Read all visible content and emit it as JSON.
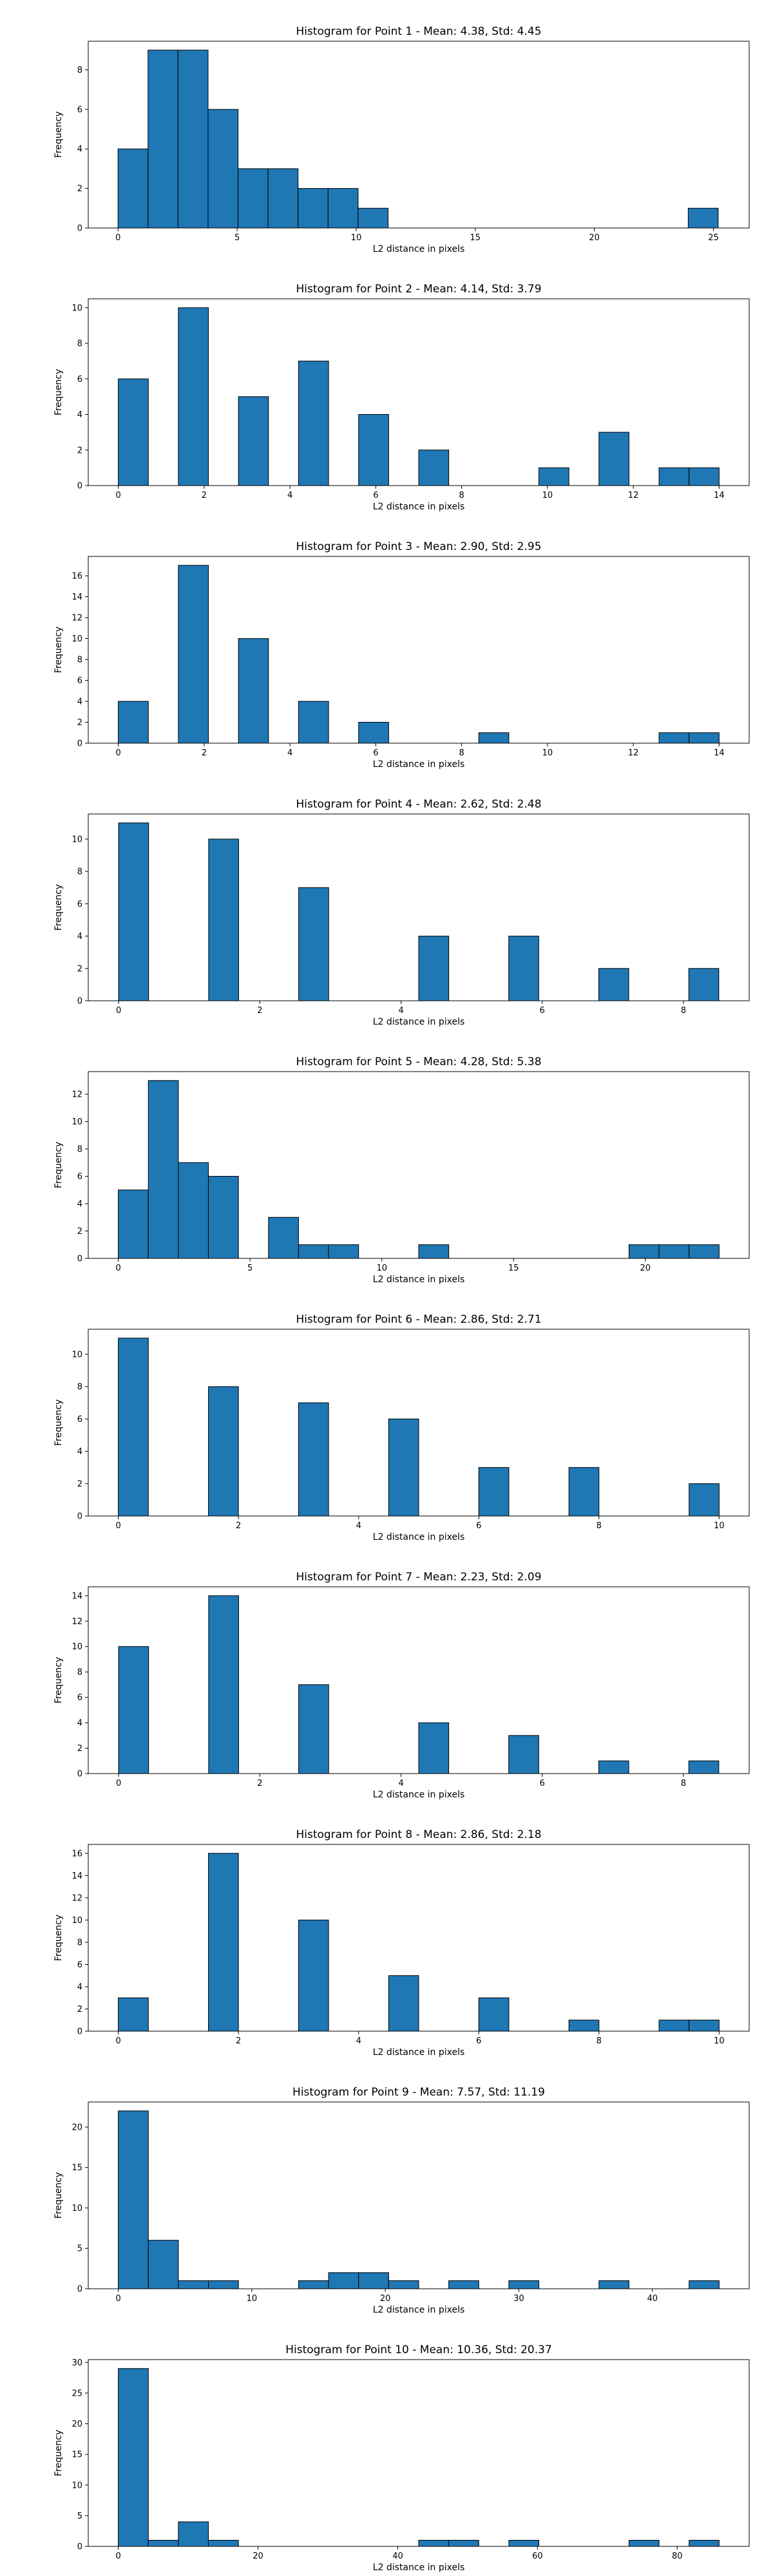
{
  "colors": {
    "bar_fill": "#1f77b4",
    "bar_edge": "#000000",
    "axis": "#000000",
    "background": "#ffffff"
  },
  "chart_data": [
    {
      "type": "bar",
      "title": "Histogram for Point 1 - Mean: 4.38, Std: 4.45",
      "xlabel": "L2 distance in pixels",
      "ylabel": "Frequency",
      "xlim": [
        -1.25,
        26.5
      ],
      "ylim": [
        0,
        9.45
      ],
      "xticks": [
        0,
        5,
        10,
        15,
        20,
        25
      ],
      "yticks": [
        0,
        2,
        4,
        6,
        8
      ],
      "bin_edges": [
        0.0,
        1.26,
        2.52,
        3.78,
        5.04,
        6.3,
        7.56,
        8.82,
        10.08,
        11.34,
        12.6,
        13.86,
        15.12,
        16.38,
        17.64,
        18.9,
        20.16,
        21.42,
        22.68,
        23.94,
        25.2
      ],
      "counts": [
        4,
        9,
        9,
        6,
        3,
        3,
        2,
        2,
        1,
        0,
        0,
        0,
        0,
        0,
        0,
        0,
        0,
        0,
        0,
        1
      ]
    },
    {
      "type": "bar",
      "title": "Histogram for Point 2 - Mean: 4.14, Std: 3.79",
      "xlabel": "L2 distance in pixels",
      "ylabel": "Frequency",
      "xlim": [
        -0.7,
        14.7
      ],
      "ylim": [
        0,
        10.5
      ],
      "xticks": [
        0,
        2,
        4,
        6,
        8,
        10,
        12,
        14
      ],
      "yticks": [
        0,
        2,
        4,
        6,
        8,
        10
      ],
      "bin_edges": [
        0.0,
        0.7,
        1.4,
        2.1,
        2.8,
        3.5,
        4.2,
        4.9,
        5.6,
        6.3,
        7.0,
        7.7,
        8.4,
        9.1,
        9.8,
        10.5,
        11.2,
        11.9,
        12.6,
        13.3,
        14.0
      ],
      "counts": [
        6,
        0,
        10,
        0,
        5,
        0,
        7,
        0,
        4,
        0,
        2,
        0,
        0,
        0,
        1,
        0,
        3,
        0,
        1,
        1
      ]
    },
    {
      "type": "bar",
      "title": "Histogram for Point 3 - Mean: 2.90, Std: 2.95",
      "xlabel": "L2 distance in pixels",
      "ylabel": "Frequency",
      "xlim": [
        -0.7,
        14.7
      ],
      "ylim": [
        0,
        17.85
      ],
      "xticks": [
        0,
        2,
        4,
        6,
        8,
        10,
        12,
        14
      ],
      "yticks": [
        0,
        2,
        4,
        6,
        8,
        10,
        12,
        14,
        16
      ],
      "bin_edges": [
        0.0,
        0.7,
        1.4,
        2.1,
        2.8,
        3.5,
        4.2,
        4.9,
        5.6,
        6.3,
        7.0,
        7.7,
        8.4,
        9.1,
        9.8,
        10.5,
        11.2,
        11.9,
        12.6,
        13.3,
        14.0
      ],
      "counts": [
        4,
        0,
        17,
        0,
        10,
        0,
        4,
        0,
        2,
        0,
        0,
        0,
        1,
        0,
        0,
        0,
        0,
        0,
        1,
        1
      ]
    },
    {
      "type": "bar",
      "title": "Histogram for Point 4 - Mean: 2.62, Std: 2.48",
      "xlabel": "L2 distance in pixels",
      "ylabel": "Frequency",
      "xlim": [
        -0.43,
        8.93
      ],
      "ylim": [
        0,
        11.55
      ],
      "xticks": [
        0,
        2,
        4,
        6,
        8
      ],
      "yticks": [
        0,
        2,
        4,
        6,
        8,
        10
      ],
      "bin_edges": [
        0.0,
        0.425,
        0.85,
        1.275,
        1.7,
        2.125,
        2.55,
        2.975,
        3.4,
        3.825,
        4.25,
        4.675,
        5.1,
        5.525,
        5.95,
        6.375,
        6.8,
        7.225,
        7.65,
        8.075,
        8.5
      ],
      "counts": [
        11,
        0,
        0,
        10,
        0,
        0,
        7,
        0,
        0,
        0,
        4,
        0,
        0,
        4,
        0,
        0,
        2,
        0,
        0,
        2
      ]
    },
    {
      "type": "bar",
      "title": "Histogram for Point 5 - Mean: 4.28, Std: 5.38",
      "xlabel": "L2 distance in pixels",
      "ylabel": "Frequency",
      "xlim": [
        -1.14,
        23.94
      ],
      "ylim": [
        0,
        13.65
      ],
      "xticks": [
        0,
        5,
        10,
        15,
        20
      ],
      "yticks": [
        0,
        2,
        4,
        6,
        8,
        10,
        12
      ],
      "bin_edges": [
        0.0,
        1.14,
        2.28,
        3.42,
        4.56,
        5.7,
        6.84,
        7.98,
        9.12,
        10.26,
        11.4,
        12.54,
        13.68,
        14.82,
        15.96,
        17.1,
        18.24,
        19.38,
        20.52,
        21.66,
        22.8
      ],
      "counts": [
        5,
        13,
        7,
        6,
        0,
        3,
        1,
        1,
        0,
        0,
        1,
        0,
        0,
        0,
        0,
        0,
        0,
        1,
        1,
        1
      ]
    },
    {
      "type": "bar",
      "title": "Histogram for Point 6 - Mean: 2.86, Std: 2.71",
      "xlabel": "L2 distance in pixels",
      "ylabel": "Frequency",
      "xlim": [
        -0.5,
        10.5
      ],
      "ylim": [
        0,
        11.55
      ],
      "xticks": [
        0,
        2,
        4,
        6,
        8,
        10
      ],
      "yticks": [
        0,
        2,
        4,
        6,
        8,
        10
      ],
      "bin_edges": [
        0.0,
        0.5,
        1.0,
        1.5,
        2.0,
        2.5,
        3.0,
        3.5,
        4.0,
        4.5,
        5.0,
        5.5,
        6.0,
        6.5,
        7.0,
        7.5,
        8.0,
        8.5,
        9.0,
        9.5,
        10.0
      ],
      "counts": [
        11,
        0,
        0,
        8,
        0,
        0,
        7,
        0,
        0,
        6,
        0,
        0,
        3,
        0,
        0,
        3,
        0,
        0,
        0,
        2
      ]
    },
    {
      "type": "bar",
      "title": "Histogram for Point 7 - Mean: 2.23, Std: 2.09",
      "xlabel": "L2 distance in pixels",
      "ylabel": "Frequency",
      "xlim": [
        -0.43,
        8.93
      ],
      "ylim": [
        0,
        14.7
      ],
      "xticks": [
        0,
        2,
        4,
        6,
        8
      ],
      "yticks": [
        0,
        2,
        4,
        6,
        8,
        10,
        12,
        14
      ],
      "bin_edges": [
        0.0,
        0.425,
        0.85,
        1.275,
        1.7,
        2.125,
        2.55,
        2.975,
        3.4,
        3.825,
        4.25,
        4.675,
        5.1,
        5.525,
        5.95,
        6.375,
        6.8,
        7.225,
        7.65,
        8.075,
        8.5
      ],
      "counts": [
        10,
        0,
        0,
        14,
        0,
        0,
        7,
        0,
        0,
        0,
        4,
        0,
        0,
        3,
        0,
        0,
        1,
        0,
        0,
        1
      ]
    },
    {
      "type": "bar",
      "title": "Histogram for Point 8 - Mean: 2.86, Std: 2.18",
      "xlabel": "L2 distance in pixels",
      "ylabel": "Frequency",
      "xlim": [
        -0.5,
        10.5
      ],
      "ylim": [
        0,
        16.8
      ],
      "xticks": [
        0,
        2,
        4,
        6,
        8,
        10
      ],
      "yticks": [
        0,
        2,
        4,
        6,
        8,
        10,
        12,
        14,
        16
      ],
      "bin_edges": [
        0.0,
        0.5,
        1.0,
        1.5,
        2.0,
        2.5,
        3.0,
        3.5,
        4.0,
        4.5,
        5.0,
        5.5,
        6.0,
        6.5,
        7.0,
        7.5,
        8.0,
        8.5,
        9.0,
        9.5,
        10.0
      ],
      "counts": [
        3,
        0,
        0,
        16,
        0,
        0,
        10,
        0,
        0,
        5,
        0,
        0,
        3,
        0,
        0,
        1,
        0,
        0,
        1,
        1
      ]
    },
    {
      "type": "bar",
      "title": "Histogram for Point 9 - Mean: 7.57, Std: 11.19",
      "xlabel": "L2 distance in pixels",
      "ylabel": "Frequency",
      "xlim": [
        -2.25,
        47.25
      ],
      "ylim": [
        0,
        23.1
      ],
      "xticks": [
        0,
        10,
        20,
        30,
        40
      ],
      "yticks": [
        0,
        5,
        10,
        15,
        20
      ],
      "bin_edges": [
        0.0,
        2.25,
        4.5,
        6.75,
        9.0,
        11.25,
        13.5,
        15.75,
        18.0,
        20.25,
        22.5,
        24.75,
        27.0,
        29.25,
        31.5,
        33.75,
        36.0,
        38.25,
        40.5,
        42.75,
        45.0
      ],
      "counts": [
        22,
        6,
        1,
        1,
        0,
        0,
        1,
        2,
        2,
        1,
        0,
        1,
        0,
        1,
        0,
        0,
        1,
        0,
        0,
        1
      ]
    },
    {
      "type": "bar",
      "title": "Histogram for Point 10 - Mean: 10.36, Std: 20.37",
      "xlabel": "L2 distance in pixels",
      "ylabel": "Frequency",
      "xlim": [
        -4.3,
        90.3
      ],
      "ylim": [
        0,
        30.45
      ],
      "xticks": [
        0,
        20,
        40,
        60,
        80
      ],
      "yticks": [
        0,
        5,
        10,
        15,
        20,
        25,
        30
      ],
      "bin_edges": [
        0.0,
        4.3,
        8.6,
        12.9,
        17.2,
        21.5,
        25.8,
        30.1,
        34.4,
        38.7,
        43.0,
        47.3,
        51.6,
        55.9,
        60.2,
        64.5,
        68.8,
        73.1,
        77.4,
        81.7,
        86.0
      ],
      "counts": [
        29,
        1,
        4,
        1,
        0,
        0,
        0,
        0,
        0,
        0,
        1,
        1,
        0,
        1,
        0,
        0,
        0,
        1,
        0,
        1
      ]
    }
  ]
}
